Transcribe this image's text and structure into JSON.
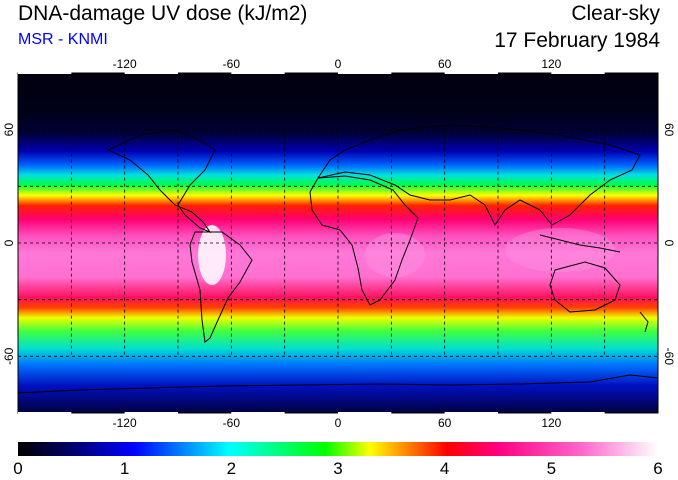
{
  "header": {
    "title": "DNA-damage UV dose (kJ/m2)",
    "subtitle": "MSR - KNMI",
    "condition": "Clear-sky",
    "date": "17 February 1984"
  },
  "map": {
    "longitude_ticks": [
      "-120",
      "-60",
      "0",
      "60",
      "120"
    ],
    "latitude_ticks": [
      "60",
      "0",
      "-60"
    ],
    "projection": "equirectangular",
    "grid": "dashed 30 degree graticule",
    "coastlines": "black outline"
  },
  "colorbar": {
    "tick_labels": [
      "0",
      "1",
      "2",
      "3",
      "4",
      "5",
      "6"
    ],
    "colors": [
      "#000000",
      "#000066",
      "#0000ff",
      "#00ffff",
      "#00ff00",
      "#ffff00",
      "#ff0000",
      "#ff0080",
      "#ff66cc",
      "#ffffff"
    ]
  }
}
